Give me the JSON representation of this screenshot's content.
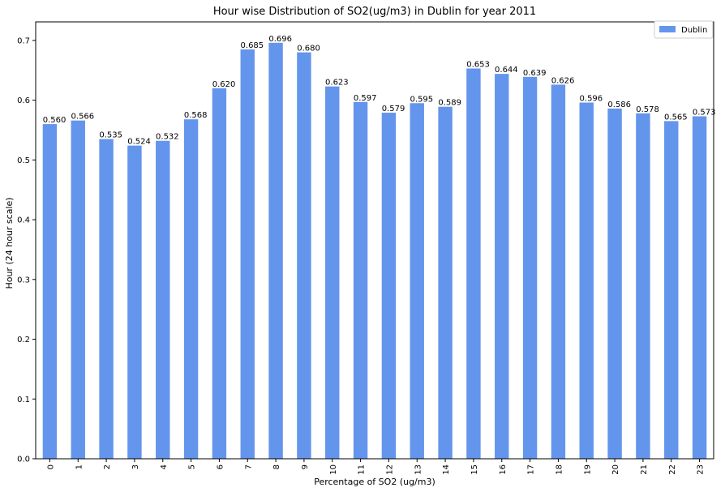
{
  "chart_data": {
    "type": "bar",
    "title": "Hour wise Distribution of SO2(ug/m3) in Dublin for year 2011",
    "xlabel": "Percentage of SO2 (ug/m3)",
    "ylabel": "Hour (24 hour scale)",
    "categories": [
      "0",
      "1",
      "2",
      "3",
      "4",
      "5",
      "6",
      "7",
      "8",
      "9",
      "10",
      "11",
      "12",
      "13",
      "14",
      "15",
      "16",
      "17",
      "18",
      "19",
      "20",
      "21",
      "22",
      "23"
    ],
    "series": [
      {
        "name": "Dublin",
        "color": "#6495ED",
        "values": [
          0.56,
          0.566,
          0.535,
          0.524,
          0.532,
          0.568,
          0.62,
          0.685,
          0.696,
          0.68,
          0.623,
          0.597,
          0.579,
          0.595,
          0.589,
          0.653,
          0.644,
          0.639,
          0.626,
          0.596,
          0.586,
          0.578,
          0.565,
          0.573
        ],
        "labels": [
          "0.560",
          "0.566",
          "0.535",
          "0.524",
          "0.532",
          "0.568",
          "0.620",
          "0.685",
          "0.696",
          "0.680",
          "0.623",
          "0.597",
          "0.579",
          "0.595",
          "0.589",
          "0.653",
          "0.644",
          "0.639",
          "0.626",
          "0.596",
          "0.586",
          "0.578",
          "0.565",
          "0.573"
        ]
      }
    ],
    "ylim": [
      0,
      0.731
    ],
    "yticks": [
      "0.0",
      "0.1",
      "0.2",
      "0.3",
      "0.4",
      "0.5",
      "0.6",
      "0.7"
    ],
    "ytick_values": [
      0.0,
      0.1,
      0.2,
      0.3,
      0.4,
      0.5,
      0.6,
      0.7
    ],
    "grid": false,
    "legend_position": "top-right",
    "xtick_rotation": "vertical"
  }
}
